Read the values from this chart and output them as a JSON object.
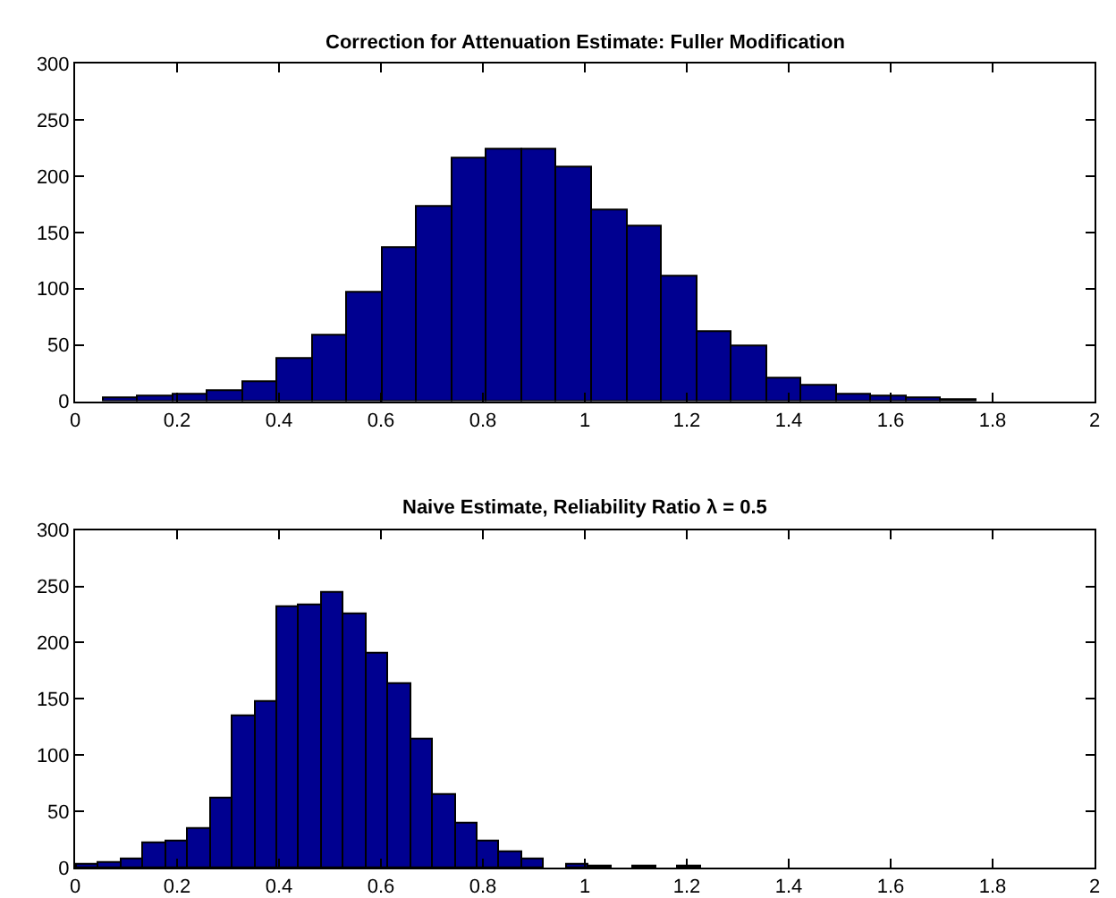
{
  "chart_data": [
    {
      "type": "histogram",
      "title": "Correction for Attenuation Estimate: Fuller Modification",
      "color": "#000090",
      "bins": [
        0.055,
        0.1235,
        0.192,
        0.2605,
        0.329,
        0.3975,
        0.466,
        0.5345,
        0.603,
        0.6715,
        0.74,
        0.8085,
        0.877,
        0.9455,
        1.014,
        1.0825,
        1.151,
        1.2195,
        1.288,
        1.3565,
        1.425,
        1.4935,
        1.562,
        1.6305,
        1.699,
        1.7675
      ],
      "values": [
        3,
        4,
        6,
        9,
        17,
        37,
        58,
        96,
        136,
        172,
        215,
        224,
        223,
        208,
        169,
        155,
        110,
        62,
        48,
        20,
        14,
        6,
        4,
        2,
        1
      ],
      "xlim": [
        0,
        2
      ],
      "xticks": [
        0,
        0.2,
        0.4,
        0.6,
        0.8,
        1,
        1.2,
        1.4,
        1.6,
        1.8,
        2
      ],
      "ylim": [
        0,
        300
      ],
      "yticks": [
        0,
        50,
        100,
        150,
        200,
        250,
        300
      ]
    },
    {
      "type": "histogram",
      "title": "Naive Estimate, Reliability Ratio λ = 0.5",
      "color": "#000090",
      "bins": [
        0.003,
        0.047,
        0.09,
        0.134,
        0.178,
        0.222,
        0.265,
        0.309,
        0.353,
        0.396,
        0.44,
        0.484,
        0.527,
        0.571,
        0.615,
        0.659,
        0.702,
        0.746,
        0.79,
        0.833,
        0.877,
        0.921,
        0.964,
        1.008,
        1.052,
        1.096,
        1.139,
        1.183,
        1.227
      ],
      "values": [
        3,
        4,
        7,
        22,
        23,
        35,
        62,
        135,
        148,
        232,
        233,
        244,
        226,
        190,
        164,
        114,
        64,
        39,
        23,
        14,
        8,
        0,
        2,
        1,
        0,
        1,
        0,
        1
      ],
      "xlim": [
        0,
        2
      ],
      "xticks": [
        0,
        0.2,
        0.4,
        0.6,
        0.8,
        1,
        1.2,
        1.4,
        1.6,
        1.8,
        2
      ],
      "ylim": [
        0,
        300
      ],
      "yticks": [
        0,
        50,
        100,
        150,
        200,
        250,
        300
      ]
    }
  ]
}
